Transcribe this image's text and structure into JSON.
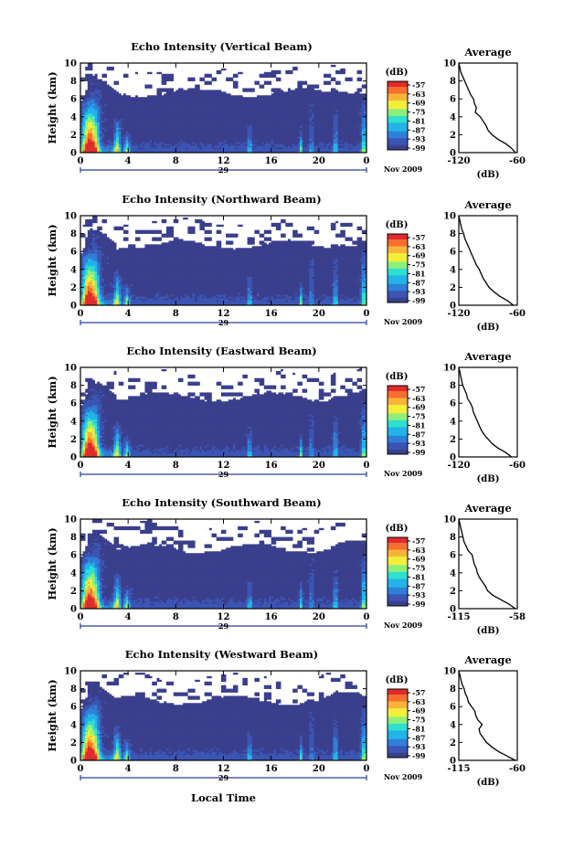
{
  "figure": {
    "xlabel": "Local Time",
    "month_label": "Nov 2009",
    "date_label": "29",
    "ylabel": "Height (km)",
    "cbar_unit": "(dB)",
    "avg_title": "Average",
    "avg_xlabel": "(dB)",
    "colors": {
      "background_echo": "#3a3f8c",
      "colormap": [
        "#3a3f8c",
        "#3b55b4",
        "#2f7fd6",
        "#22b3e8",
        "#2fe0d0",
        "#8df07a",
        "#f2ee3a",
        "#f8b43a",
        "#f47030",
        "#e02b2b"
      ]
    }
  },
  "chart_data": [
    {
      "type": "heatmap",
      "title": "Echo Intensity (Vertical Beam)",
      "xticks": [
        "0",
        "4",
        "8",
        "12",
        "16",
        "20",
        "0"
      ],
      "xlim": [
        0,
        24
      ],
      "ylim": [
        0,
        10
      ],
      "yticks": [
        "0",
        "2",
        "4",
        "6",
        "8",
        "10"
      ],
      "colorbar": {
        "ticks": [
          "-57",
          "-63",
          "-69",
          "-75",
          "-81",
          "-87",
          "-93",
          "-99"
        ]
      },
      "average": {
        "xticks": [
          "-120",
          "-60"
        ],
        "xlim": [
          -120,
          -60
        ],
        "height": [
          0,
          0.5,
          1,
          1.5,
          2,
          2.5,
          3,
          3.5,
          4,
          4.5,
          5,
          5.5,
          6,
          6.5,
          7,
          7.5,
          8,
          8.5,
          9,
          9.5,
          10
        ],
        "db": [
          -62,
          -66,
          -72,
          -80,
          -86,
          -90,
          -92,
          -95,
          -98,
          -103,
          -102,
          -104,
          -105,
          -108,
          -110,
          -112,
          -114,
          -116,
          -118,
          -119,
          -120
        ]
      }
    },
    {
      "type": "heatmap",
      "title": "Echo Intensity (Northward Beam)",
      "xticks": [
        "0",
        "4",
        "8",
        "12",
        "16",
        "20",
        "0"
      ],
      "xlim": [
        0,
        24
      ],
      "ylim": [
        0,
        10
      ],
      "yticks": [
        "0",
        "2",
        "4",
        "6",
        "8",
        "10"
      ],
      "colorbar": {
        "ticks": [
          "-57",
          "-63",
          "-69",
          "-75",
          "-81",
          "-87",
          "-93",
          "-99"
        ]
      },
      "average": {
        "xticks": [
          "-120",
          "-60"
        ],
        "xlim": [
          -120,
          -60
        ],
        "height": [
          0,
          0.5,
          1,
          1.5,
          2,
          2.5,
          3,
          3.5,
          4,
          4.5,
          5,
          5.5,
          6,
          6.5,
          7,
          7.5,
          8,
          8.5,
          9,
          9.5,
          10
        ],
        "db": [
          -64,
          -70,
          -78,
          -84,
          -89,
          -92,
          -95,
          -97,
          -99,
          -102,
          -104,
          -106,
          -108,
          -110,
          -112,
          -114,
          -115,
          -117,
          -118,
          -119,
          -120
        ]
      }
    },
    {
      "type": "heatmap",
      "title": "Echo Intensity (Eastward Beam)",
      "xticks": [
        "0",
        "4",
        "8",
        "12",
        "16",
        "20",
        "0"
      ],
      "xlim": [
        0,
        24
      ],
      "ylim": [
        0,
        10
      ],
      "yticks": [
        "0",
        "2",
        "4",
        "6",
        "8",
        "10"
      ],
      "colorbar": {
        "ticks": [
          "-57",
          "-63",
          "-69",
          "-75",
          "-81",
          "-87",
          "-93",
          "-99"
        ]
      },
      "average": {
        "xticks": [
          "-120",
          "-60"
        ],
        "xlim": [
          -120,
          -60
        ],
        "height": [
          0,
          0.5,
          1,
          1.5,
          2,
          2.5,
          3,
          3.5,
          4,
          4.5,
          5,
          5.5,
          6,
          6.5,
          7,
          7.5,
          8,
          8.5,
          9,
          9.5,
          10
        ],
        "db": [
          -66,
          -72,
          -80,
          -86,
          -90,
          -94,
          -97,
          -99,
          -101,
          -103,
          -105,
          -106,
          -108,
          -111,
          -112,
          -114,
          -116,
          -117,
          -118,
          -119,
          -120
        ]
      }
    },
    {
      "type": "heatmap",
      "title": "Echo Intensity (Southward Beam)",
      "xticks": [
        "0",
        "4",
        "8",
        "12",
        "16",
        "20",
        "0"
      ],
      "xlim": [
        0,
        24
      ],
      "ylim": [
        0,
        10
      ],
      "yticks": [
        "0",
        "2",
        "4",
        "6",
        "8",
        "10"
      ],
      "colorbar": {
        "ticks": [
          "-57",
          "-63",
          "-69",
          "-75",
          "-81",
          "-87",
          "-93",
          "-99"
        ]
      },
      "average": {
        "xticks": [
          "-115",
          "-58"
        ],
        "xlim": [
          -115,
          -58
        ],
        "height": [
          0,
          0.5,
          1,
          1.5,
          2,
          2.5,
          3,
          3.5,
          4,
          4.5,
          5,
          5.5,
          6,
          6.5,
          7,
          7.5,
          8,
          8.5,
          9,
          9.5,
          10
        ],
        "db": [
          -60,
          -66,
          -74,
          -82,
          -87,
          -89,
          -92,
          -95,
          -97,
          -98,
          -100,
          -101,
          -102,
          -106,
          -108,
          -110,
          -111,
          -112,
          -113,
          -114,
          -115
        ]
      }
    },
    {
      "type": "heatmap",
      "title": "Echo Intensity (Westward Beam)",
      "xticks": [
        "0",
        "4",
        "8",
        "12",
        "16",
        "20",
        "0"
      ],
      "xlim": [
        0,
        24
      ],
      "ylim": [
        0,
        10
      ],
      "yticks": [
        "0",
        "2",
        "4",
        "6",
        "8",
        "10"
      ],
      "colorbar": {
        "ticks": [
          "-57",
          "-63",
          "-69",
          "-75",
          "-81",
          "-87",
          "-93",
          "-99"
        ]
      },
      "average": {
        "xticks": [
          "-115",
          "-60"
        ],
        "xlim": [
          -115,
          -60
        ],
        "height": [
          0,
          0.5,
          1,
          1.5,
          2,
          2.5,
          3,
          3.5,
          4,
          4.5,
          5,
          5.5,
          6,
          6.5,
          7,
          7.5,
          8,
          8.5,
          9,
          9.5,
          10
        ],
        "db": [
          -62,
          -70,
          -78,
          -84,
          -89,
          -92,
          -95,
          -96,
          -93,
          -97,
          -99,
          -100,
          -103,
          -106,
          -107,
          -109,
          -110,
          -112,
          -113,
          -114,
          -115
        ]
      }
    }
  ]
}
